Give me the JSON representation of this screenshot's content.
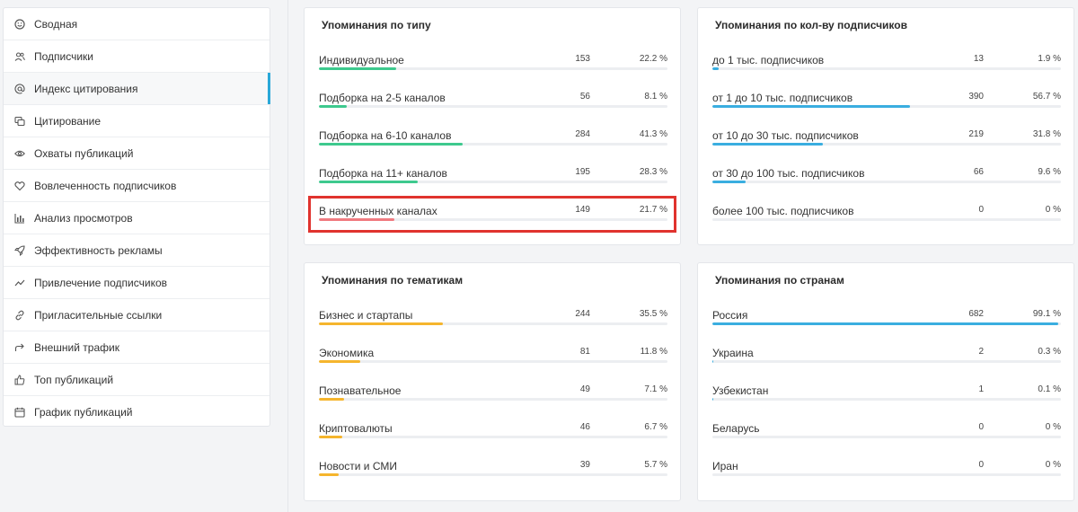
{
  "sidebar": {
    "items": [
      {
        "label": "Сводная",
        "icon": "smiley-icon"
      },
      {
        "label": "Подписчики",
        "icon": "users-icon"
      },
      {
        "label": "Индекс цитирования",
        "icon": "at-icon",
        "active": true
      },
      {
        "label": "Цитирование",
        "icon": "quote-icon"
      },
      {
        "label": "Охваты публикаций",
        "icon": "eye-icon"
      },
      {
        "label": "Вовлеченность подписчиков",
        "icon": "heart-icon"
      },
      {
        "label": "Анализ просмотров",
        "icon": "bar-chart-icon"
      },
      {
        "label": "Эффективность рекламы",
        "icon": "rocket-icon"
      },
      {
        "label": "Привлечение подписчиков",
        "icon": "trend-icon"
      },
      {
        "label": "Пригласительные ссылки",
        "icon": "link-icon"
      },
      {
        "label": "Внешний трафик",
        "icon": "share-arrow-icon"
      },
      {
        "label": "Топ публикаций",
        "icon": "thumbs-up-icon"
      },
      {
        "label": "График публикаций",
        "icon": "calendar-icon"
      }
    ]
  },
  "colors": {
    "green": "#3ec98e",
    "red": "#f07b80",
    "blue": "#3aaee0",
    "orange": "#f5b52d",
    "track": "#eceef1",
    "highlight": "#e0332e",
    "accent": "#2aa8d8"
  },
  "cards": {
    "by_type": {
      "title": "Упоминания по типу",
      "rows": [
        {
          "label": "Индивидуальное",
          "count": "153",
          "pct": "22.2 %",
          "value": 22.2
        },
        {
          "label": "Подборка на 2-5 каналов",
          "count": "56",
          "pct": "8.1 %",
          "value": 8.1
        },
        {
          "label": "Подборка на 6-10 каналов",
          "count": "284",
          "pct": "41.3 %",
          "value": 41.3
        },
        {
          "label": "Подборка на 11+ каналов",
          "count": "195",
          "pct": "28.3 %",
          "value": 28.3
        },
        {
          "label": "В накрученных каналах",
          "count": "149",
          "pct": "21.7 %",
          "value": 21.7
        }
      ]
    },
    "by_subscribers": {
      "title": "Упоминания по кол-ву подписчиков",
      "rows": [
        {
          "label": "до 1 тыс. подписчиков",
          "count": "13",
          "pct": "1.9 %",
          "value": 1.9
        },
        {
          "label": "от 1 до 10 тыс. подписчиков",
          "count": "390",
          "pct": "56.7 %",
          "value": 56.7
        },
        {
          "label": "от 10 до 30 тыс. подписчиков",
          "count": "219",
          "pct": "31.8 %",
          "value": 31.8
        },
        {
          "label": "от 30 до 100 тыс. подписчиков",
          "count": "66",
          "pct": "9.6 %",
          "value": 9.6
        },
        {
          "label": "более 100 тыс. подписчиков",
          "count": "0",
          "pct": "0 %",
          "value": 0
        }
      ]
    },
    "by_topic": {
      "title": "Упоминания по тематикам",
      "rows": [
        {
          "label": "Бизнес и стартапы",
          "count": "244",
          "pct": "35.5 %",
          "value": 35.5
        },
        {
          "label": "Экономика",
          "count": "81",
          "pct": "11.8 %",
          "value": 11.8
        },
        {
          "label": "Познавательное",
          "count": "49",
          "pct": "7.1 %",
          "value": 7.1
        },
        {
          "label": "Криптовалюты",
          "count": "46",
          "pct": "6.7 %",
          "value": 6.7
        },
        {
          "label": "Новости и СМИ",
          "count": "39",
          "pct": "5.7 %",
          "value": 5.7
        }
      ]
    },
    "by_country": {
      "title": "Упоминания по странам",
      "rows": [
        {
          "label": "Россия",
          "count": "682",
          "pct": "99.1 %",
          "value": 99.1
        },
        {
          "label": "Украина",
          "count": "2",
          "pct": "0.3 %",
          "value": 0.3
        },
        {
          "label": "Узбекистан",
          "count": "1",
          "pct": "0.1 %",
          "value": 0.1
        },
        {
          "label": "Беларусь",
          "count": "0",
          "pct": "0 %",
          "value": 0
        },
        {
          "label": "Иран",
          "count": "0",
          "pct": "0 %",
          "value": 0
        }
      ]
    }
  }
}
